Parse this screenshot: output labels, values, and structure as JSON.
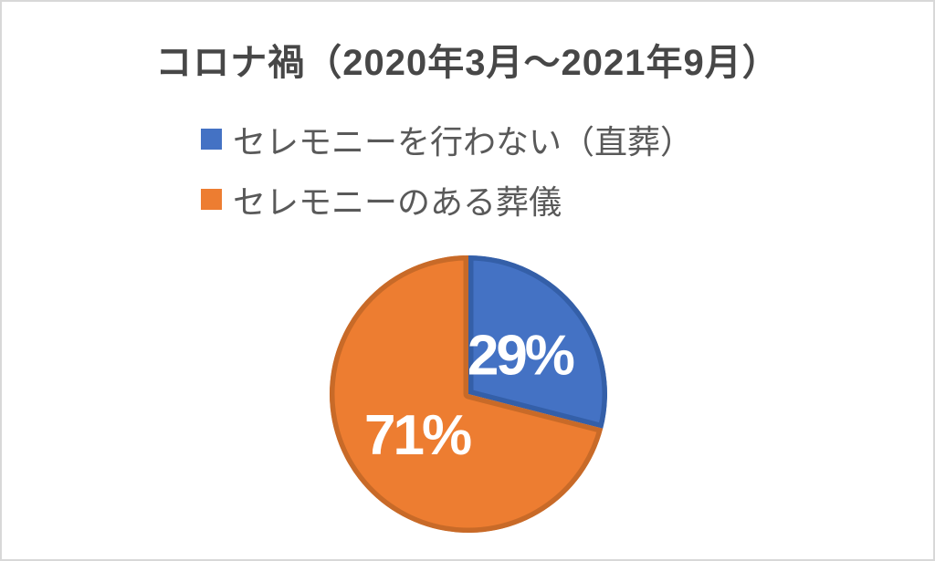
{
  "page": {
    "background_color": "#ffffff",
    "frame_border_color": "#d8d8d8"
  },
  "chart_data": {
    "type": "pie",
    "title": "コロナ禍（2020年3月～2021年9月）",
    "title_color": "#474747",
    "legend_position": "above-chart-left",
    "legend_text_color": "#595959",
    "start_angle_deg": 0,
    "direction": "clockwise",
    "data_label_color": "#ffffff",
    "label_radius_factor": 0.47,
    "slices": [
      {
        "legend_label": "セレモニーを行わない（直葬）",
        "value": 29,
        "data_label": "29%",
        "color": "#4472C4",
        "border_color": "#345FA8"
      },
      {
        "legend_label": "セレモニーのある葬儀",
        "value": 71,
        "data_label": "71%",
        "color": "#ED7D31",
        "border_color": "#C86A28"
      }
    ]
  }
}
